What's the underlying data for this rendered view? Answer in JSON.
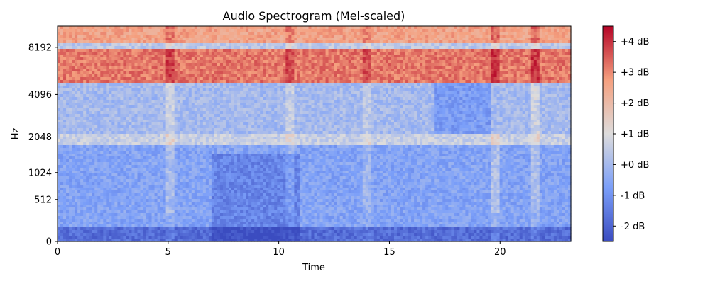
{
  "chart_data": {
    "type": "heatmap",
    "title": "Audio Spectrogram (Mel-scaled)",
    "xlabel": "Time",
    "ylabel": "Hz",
    "xlim": [
      0,
      23.2
    ],
    "x_ticks": [
      0,
      5,
      10,
      15,
      20
    ],
    "y_scale": "mel",
    "y_ticks": [
      0,
      512,
      1024,
      2048,
      4096,
      8192
    ],
    "colormap": "coolwarm",
    "colorbar": {
      "range": [
        -2.5,
        4.5
      ],
      "ticks": [
        -2,
        -1,
        0,
        1,
        2,
        3,
        4
      ],
      "tick_labels": [
        "-2 dB",
        "-1 dB",
        "+0 dB",
        "+1 dB",
        "+2 dB",
        "+3 dB",
        "+4 dB"
      ]
    },
    "bands_db": [
      {
        "from_hz": 0,
        "to_hz": 150,
        "value_db": -1.8
      },
      {
        "from_hz": 150,
        "to_hz": 1800,
        "value_db": -0.6
      },
      {
        "from_hz": 1800,
        "to_hz": 2200,
        "value_db": 0.6
      },
      {
        "from_hz": 2200,
        "to_hz": 4800,
        "value_db": 0.0
      },
      {
        "from_hz": 4800,
        "to_hz": 8000,
        "value_db": 3.2
      },
      {
        "from_hz": 8000,
        "to_hz": 8800,
        "value_db": 0.4
      },
      {
        "from_hz": 8800,
        "to_hz": 11025,
        "value_db": 2.6
      }
    ],
    "time_events": [
      {
        "t": 5.1,
        "boost_db": 0.8
      },
      {
        "t": 10.5,
        "boost_db": 0.7
      },
      {
        "t": 14.0,
        "boost_db": 0.6
      },
      {
        "t": 19.8,
        "boost_db": 1.0
      },
      {
        "t": 21.6,
        "boost_db": 0.9
      }
    ],
    "quiet_regions": [
      {
        "from_t": 7.0,
        "to_t": 11.0,
        "below_hz": 1500,
        "delta_db": -0.7
      },
      {
        "from_t": 17.0,
        "to_t": 20.0,
        "from_hz": 2200,
        "to_hz": 4800,
        "delta_db": -0.8
      }
    ]
  }
}
